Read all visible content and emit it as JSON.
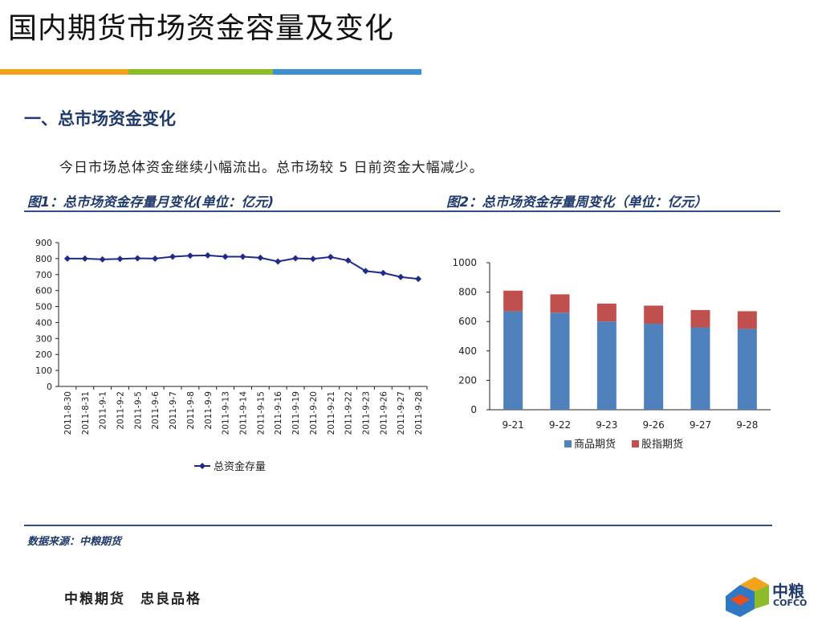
{
  "page": {
    "title": "国内期货市场资金容量及变化",
    "section_title": "一、总市场资金变化",
    "summary": "今日市场总体资金继续小幅流出。总市场较 5 日前资金大幅减少。",
    "source": "数据来源：中粮期货",
    "slogan": "中粮期货　忠良品格",
    "logo_cn": "中粮",
    "logo_en": "COFCO"
  },
  "colors": {
    "title_bar": [
      "#f2a31b",
      "#8dbb2a",
      "#3f8fd1"
    ],
    "rule": "#2f4f82",
    "line_series": "#1f2a8a",
    "bar_series_1": "#4f81bd",
    "bar_series_2": "#c0504d"
  },
  "chart_data": [
    {
      "type": "line",
      "title": "图1：总市场资金存量月变化(单位：亿元)",
      "categories": [
        "2011-8-30",
        "2011-8-31",
        "2011-9-1",
        "2011-9-2",
        "2011-9-5",
        "2011-9-6",
        "2011-9-7",
        "2011-9-8",
        "2011-9-9",
        "2011-9-13",
        "2011-9-14",
        "2011-9-15",
        "2011-9-16",
        "2011-9-19",
        "2011-9-20",
        "2011-9-21",
        "2011-9-22",
        "2011-9-23",
        "2011-9-26",
        "2011-9-27",
        "2011-9-28"
      ],
      "series": [
        {
          "name": "总资金存量",
          "values": [
            800,
            800,
            795,
            798,
            802,
            800,
            812,
            818,
            820,
            812,
            812,
            805,
            782,
            802,
            798,
            810,
            788,
            722,
            710,
            685,
            673
          ]
        }
      ],
      "ylim": [
        0,
        900
      ],
      "yticks": [
        0,
        100,
        200,
        300,
        400,
        500,
        600,
        700,
        800,
        900
      ],
      "legend": "bottom",
      "grid": false
    },
    {
      "type": "bar",
      "stacked": true,
      "title": "图2：总市场资金存量周变化（单位：亿元）",
      "categories": [
        "9-21",
        "9-22",
        "9-23",
        "9-26",
        "9-27",
        "9-28"
      ],
      "series": [
        {
          "name": "商品期货",
          "values": [
            670,
            660,
            600,
            585,
            560,
            550
          ]
        },
        {
          "name": "股指期货",
          "values": [
            140,
            125,
            122,
            123,
            118,
            120
          ]
        }
      ],
      "ylim": [
        0,
        1000
      ],
      "yticks": [
        0,
        200,
        400,
        600,
        800,
        1000
      ],
      "legend": "bottom",
      "grid": false
    }
  ]
}
